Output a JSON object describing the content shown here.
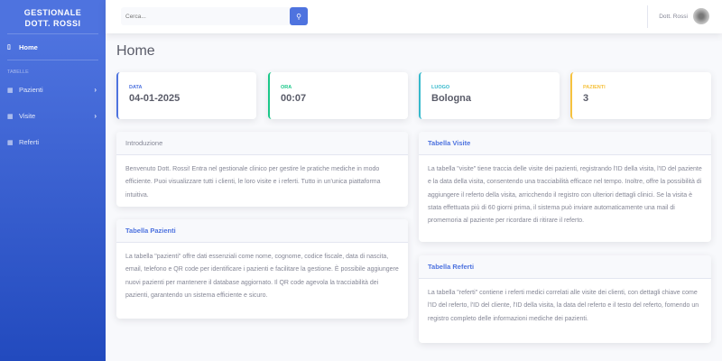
{
  "sidebar": {
    "brand_line1": "GESTIONALE",
    "brand_line2": "DOTT. ROSSI",
    "home": "Home",
    "heading": "TABELLE",
    "items": [
      {
        "label": "Pazienti",
        "icon": "table-icon"
      },
      {
        "label": "Visite",
        "icon": "table-icon"
      },
      {
        "label": "Referti",
        "icon": "table-icon"
      }
    ]
  },
  "topbar": {
    "search_placeholder": "Cerca...",
    "user_name": "Dott. Rossi"
  },
  "page_title": "Home",
  "stats": [
    {
      "label": "DATA",
      "value": "04-01-2025",
      "color": "#4e73df"
    },
    {
      "label": "ORA",
      "value": "00:07",
      "color": "#1cc88a"
    },
    {
      "label": "LUOGO",
      "value": "Bologna",
      "color": "#36b9cc"
    },
    {
      "label": "PAZIENTI",
      "value": "3",
      "color": "#f6c23e"
    }
  ],
  "cards": {
    "intro": {
      "title": "Introduzione",
      "body": "Benvenuto Dott. Rossi! Entra nel gestionale clinico per gestire le pratiche mediche in modo efficiente. Puoi visualizzare tutti i clienti, le loro visite e i referti. Tutto in un'unica piattaforma intuitiva."
    },
    "pazienti": {
      "title": "Tabella Pazienti",
      "body": "La tabella \"pazienti\" offre dati essenziali come nome, cognome, codice fiscale, data di nascita, email, telefono e QR code per identificare i pazienti e facilitare la gestione. È possibile aggiungere nuovi pazienti per mantenere il database aggiornato. Il QR code agevola la tracciabilità dei pazienti, garantendo un sistema efficiente e sicuro."
    },
    "visite": {
      "title": "Tabella Visite",
      "body": "La tabella \"visite\" tiene traccia delle visite dei pazienti, registrando l'ID della visita, l'ID del paziente e la data della visita, consentendo una tracciabilità efficace nel tempo. Inoltre, offre la possibilità di aggiungere il referto della visita, arricchendo il registro con ulteriori dettagli clinici. Se la visita è stata effettuata più di 60 giorni prima, il sistema può inviare automaticamente una mail di promemoria al paziente per ricordare di ritirare il referto."
    },
    "referti": {
      "title": "Tabella Referti",
      "body": "La tabella \"referti\" contiene i referti medici correlati alle visite dei clienti, con dettagli chiave come l'ID del referto, l'ID del cliente, l'ID della visita, la data del referto e il testo del referto, fornendo un registro completo delle informazioni mediche dei pazienti."
    }
  }
}
